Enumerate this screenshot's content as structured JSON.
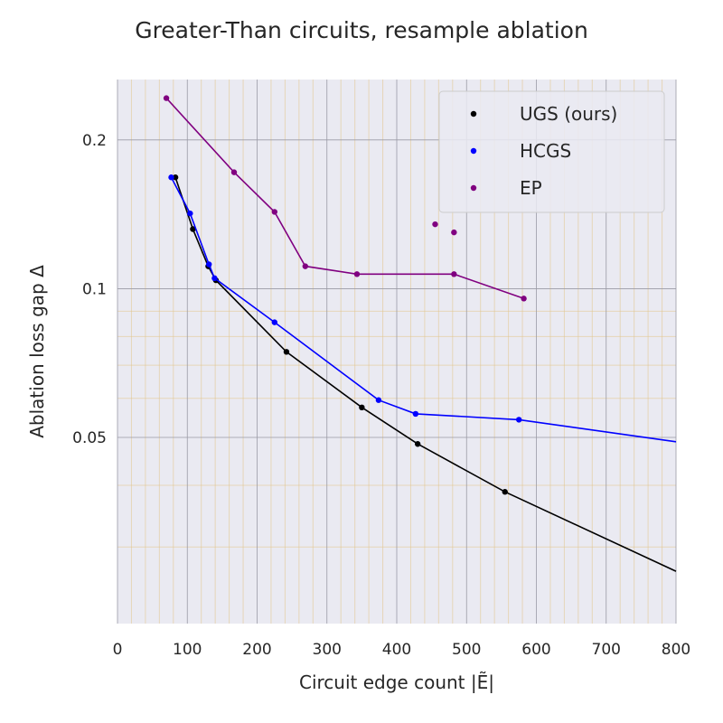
{
  "chart_data": {
    "type": "line",
    "title": "Greater-Than circuits, resample ablation",
    "xlabel": "Circuit edge count |Ẽ|",
    "ylabel": "Ablation loss gap Δ",
    "x_scale": "linear",
    "y_scale": "log",
    "xlim": [
      0,
      800
    ],
    "ylim": [
      0.021,
      0.265
    ],
    "x_ticks": [
      0,
      100,
      200,
      300,
      400,
      500,
      600,
      700,
      800
    ],
    "y_ticks": [
      0.05,
      0.1,
      0.2
    ],
    "y_tick_labels": [
      "0.05",
      "0.1",
      "0.2"
    ],
    "grid": true,
    "legend_position": "top-right",
    "series": [
      {
        "name": "UGS (ours)",
        "color": "#000000",
        "x": [
          83,
          108,
          130,
          141,
          242,
          350,
          430,
          555,
          800
        ],
        "y": [
          0.168,
          0.132,
          0.111,
          0.104,
          0.0745,
          0.0575,
          0.0485,
          0.0388,
          0.0268
        ],
        "marker_count": 8
      },
      {
        "name": "HCGS",
        "color": "#0000ff",
        "x": [
          77,
          104,
          131,
          139,
          225,
          374,
          427,
          575,
          800
        ],
        "y": [
          0.168,
          0.142,
          0.112,
          0.105,
          0.0855,
          0.0595,
          0.0558,
          0.0543,
          0.049
        ],
        "marker_count": 8
      },
      {
        "name": "EP",
        "color": "#800080",
        "x": [
          70,
          167,
          225,
          269,
          343,
          482,
          582
        ],
        "y": [
          0.243,
          0.172,
          0.143,
          0.111,
          0.107,
          0.107,
          0.0955
        ],
        "extra_points": [
          {
            "x": 455,
            "y": 0.135
          },
          {
            "x": 482,
            "y": 0.13
          }
        ]
      }
    ]
  }
}
